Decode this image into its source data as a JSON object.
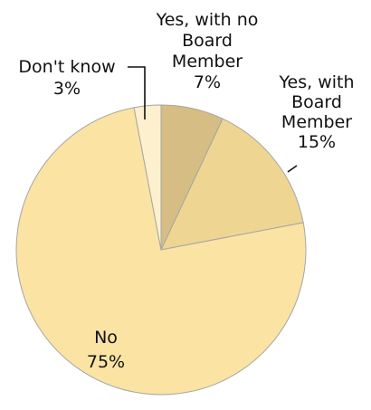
{
  "chart_data": {
    "type": "pie",
    "title": "",
    "slices": [
      {
        "label": "Yes, with no Board Member",
        "label_lines": [
          "Yes, with no",
          "Board",
          "Member",
          "7%"
        ],
        "value": 7,
        "value_label": "7%",
        "color": "#d6bd84"
      },
      {
        "label": "Yes, with Board Member",
        "label_lines": [
          "Yes, with",
          "Board",
          "Member",
          "15%"
        ],
        "value": 15,
        "value_label": "15%",
        "color": "#eed592"
      },
      {
        "label": "No",
        "label_lines": [
          "No",
          "75%"
        ],
        "value": 75,
        "value_label": "75%",
        "color": "#fbe3a3"
      },
      {
        "label": "Don't know",
        "label_lines": [
          "Don't know",
          "3%"
        ],
        "value": 3,
        "value_label": "3%",
        "color": "#fdf0cf"
      }
    ],
    "start_angle_deg": 0,
    "direction": "clockwise",
    "legend": "none"
  }
}
